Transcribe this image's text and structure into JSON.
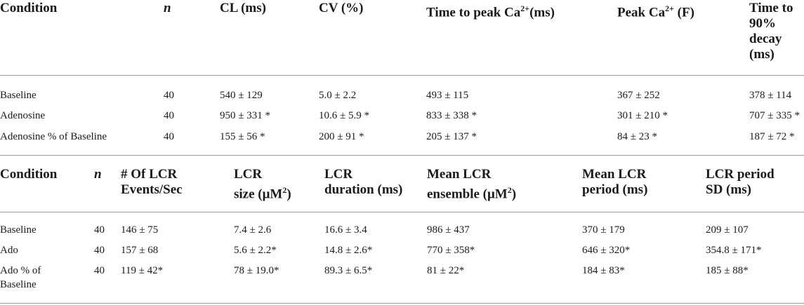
{
  "table1": {
    "headers": {
      "condition": "Condition",
      "n": "n",
      "cl": "CL (ms)",
      "cv": "CV (%)",
      "ttp_pre": "Time to peak Ca",
      "ttp_sup": "2+",
      "ttp_post": "(ms)",
      "peak_pre": "Peak Ca",
      "peak_sup": "2+",
      "peak_post": " (F)",
      "decay_l1": "Time to",
      "decay_l2": "90%",
      "decay_l3": "decay",
      "decay_l4": "(ms)"
    },
    "rows": [
      {
        "condition": "Baseline",
        "n": "40",
        "cl": "540 ± 129",
        "cv": "5.0 ± 2.2",
        "ttp": "493 ± 115",
        "peak": "367 ± 252",
        "decay": "378 ± 114"
      },
      {
        "condition": "Adenosine",
        "n": "40",
        "cl": "950 ± 331 *",
        "cv": "10.6 ± 5.9 *",
        "ttp": "833 ± 338 *",
        "peak": "301 ± 210 *",
        "decay": "707 ± 335 *"
      },
      {
        "condition": "Adenosine % of Baseline",
        "n": "40",
        "cl": "155 ± 56 *",
        "cv": "200 ± 91 *",
        "ttp": "205 ± 137 *",
        "peak": "84 ± 23 *",
        "decay": "187 ± 72 *"
      }
    ]
  },
  "table2": {
    "headers": {
      "condition": "Condition",
      "n": "n",
      "events_l1": "# Of LCR",
      "events_l2": "Events/Sec",
      "size_l1": "LCR",
      "size_l2_pre": "size (μM",
      "size_l2_sup": "2",
      "size_l2_post": ")",
      "duration_l1": "LCR",
      "duration_l2": "duration (ms)",
      "ensemble_l1": "Mean LCR",
      "ensemble_l2_pre": "ensemble (μM",
      "ensemble_l2_sup": "2",
      "ensemble_l2_post": ")",
      "period_l1": "Mean LCR",
      "period_l2": "period (ms)",
      "periodsd_l1": "LCR period",
      "periodsd_l2": "SD (ms)"
    },
    "rows": [
      {
        "condition": "Baseline",
        "n": "40",
        "events": "146 ± 75",
        "size": "7.4 ± 2.6",
        "duration": "16.6 ± 3.4",
        "ensemble": "986 ± 437",
        "period": "370 ± 179",
        "periodsd": "209 ± 107"
      },
      {
        "condition": "Ado",
        "n": "40",
        "events": "157 ± 68",
        "size": "5.6 ± 2.2*",
        "duration": "14.8 ± 2.6*",
        "ensemble": "770 ± 358*",
        "period": "646 ± 320*",
        "periodsd": "354.8 ± 171*"
      },
      {
        "condition_l1": "Ado % of",
        "condition_l2": "Baseline",
        "n": "40",
        "events": "119 ± 42*",
        "size": "78 ± 19.0*",
        "duration": "89.3 ± 6.5*",
        "ensemble": "81 ± 22*",
        "period": "184 ± 83*",
        "periodsd": "185 ± 88*"
      }
    ]
  }
}
